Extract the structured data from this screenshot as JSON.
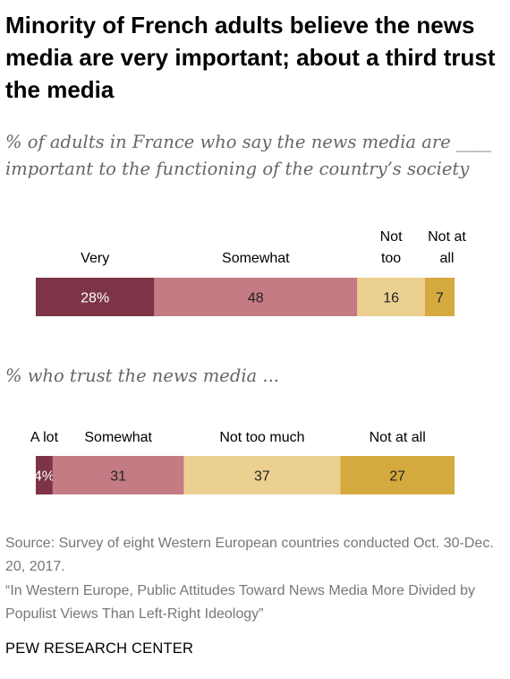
{
  "header": {
    "title": "Minority of French adults believe the news media are very important; about a third trust the media"
  },
  "chart_data": [
    {
      "type": "bar",
      "orientation": "horizontal-stacked",
      "subtitle": "% of adults in France who say the news media are ____ important to the functioning of the country’s society",
      "categories": [
        "Very",
        "Somewhat",
        "Not too",
        "Not at all"
      ],
      "values": [
        28,
        48,
        16,
        7
      ],
      "value_labels": [
        "28%",
        "48",
        "16",
        "7"
      ],
      "colors": [
        "#7d3446",
        "#c47b84",
        "#ecd08f",
        "#d4a93e"
      ]
    },
    {
      "type": "bar",
      "orientation": "horizontal-stacked",
      "subtitle": "% who trust the news media ...",
      "categories": [
        "A lot",
        "Somewhat",
        "Not too much",
        "Not at all"
      ],
      "values": [
        4,
        31,
        37,
        27
      ],
      "value_labels": [
        "4%",
        "31",
        "37",
        "27"
      ],
      "colors": [
        "#7d3446",
        "#c47b84",
        "#ecd08f",
        "#d4a93e"
      ]
    }
  ],
  "footer": {
    "source": "Source: Survey of eight Western European countries conducted Oct. 30-Dec. 20, 2017.",
    "report": "“In Western Europe, Public Attitudes Toward News Media More Divided by Populist Views Than Left-Right Ideology”",
    "brand": "PEW RESEARCH CENTER"
  }
}
